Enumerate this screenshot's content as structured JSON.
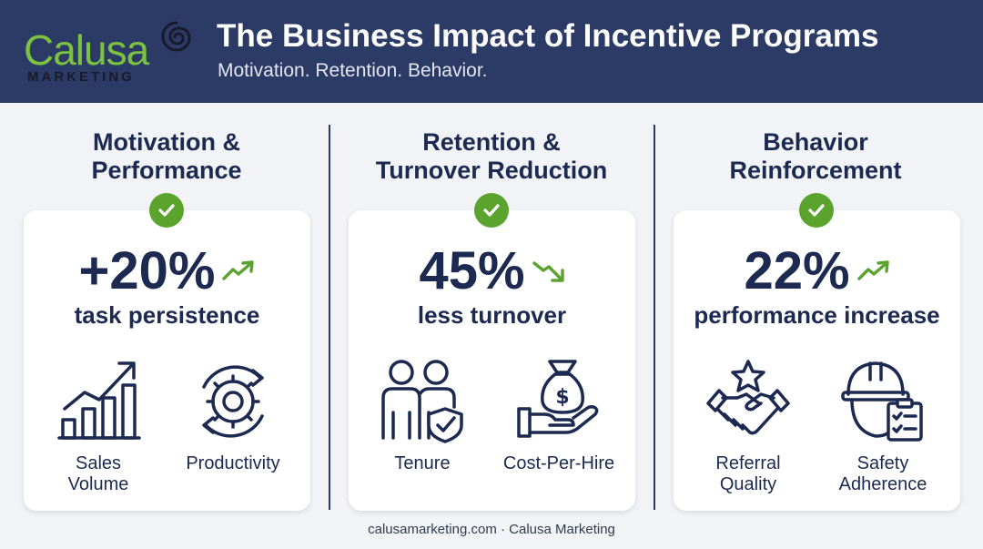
{
  "header": {
    "logo_word": "Calusa",
    "logo_sub": "MARKETING",
    "title": "The Business Impact of Incentive Programs",
    "subtitle": "Motivation. Retention. Behavior."
  },
  "columns": [
    {
      "title_line1": "Motivation &",
      "title_line2": "Performance",
      "stat": "+20%",
      "stat_label": "task persistence",
      "trend": "up",
      "icons": [
        {
          "icon": "bar-chart-growth-icon",
          "label_line1": "Sales",
          "label_line2": "Volume"
        },
        {
          "icon": "gear-cycle-icon",
          "label_line1": "Productivity",
          "label_line2": ""
        }
      ]
    },
    {
      "title_line1": "Retention &",
      "title_line2": "Turnover Reduction",
      "stat": "45%",
      "stat_label": "less turnover",
      "trend": "down",
      "icons": [
        {
          "icon": "people-shield-icon",
          "label_line1": "Tenure",
          "label_line2": ""
        },
        {
          "icon": "money-bag-hand-icon",
          "label_line1": "Cost-Per-Hire",
          "label_line2": ""
        }
      ]
    },
    {
      "title_line1": "Behavior",
      "title_line2": "Reinforcement",
      "stat": "22%",
      "stat_label": "performance increase",
      "trend": "up",
      "icons": [
        {
          "icon": "handshake-star-icon",
          "label_line1": "Referral",
          "label_line2": "Quality"
        },
        {
          "icon": "hardhat-checklist-icon",
          "label_line1": "Safety",
          "label_line2": "Adherence"
        }
      ]
    }
  ],
  "footer": "calusamarketing.com · Calusa Marketing",
  "colors": {
    "header_bg": "#2c3a66",
    "accent_green": "#5aa32d",
    "logo_green": "#7cc242",
    "text_navy": "#1c2a52"
  }
}
